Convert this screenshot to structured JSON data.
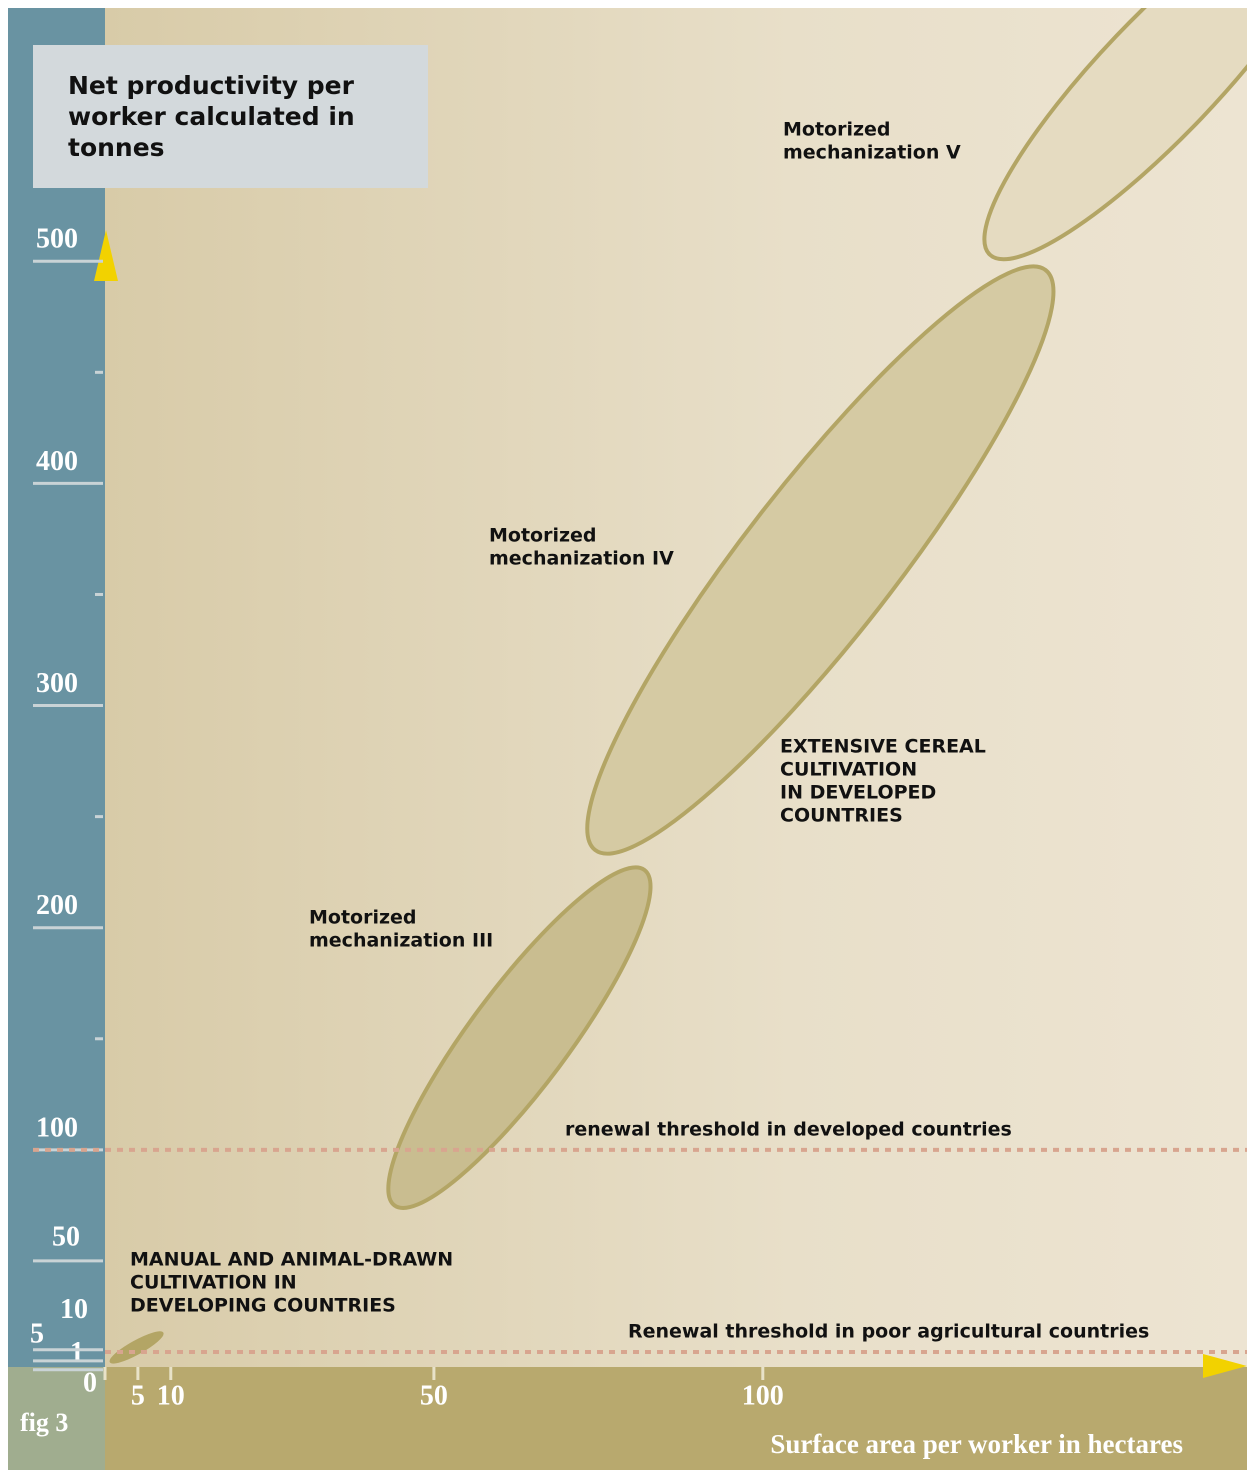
{
  "chart_data": {
    "type": "region",
    "title": "Net productivity per worker calculated in tonnes",
    "figure_label": "fig 3",
    "x_label": "Surface area per worker in hectares",
    "xlim": [
      0,
      173
    ],
    "ylim": [
      0,
      614
    ],
    "xticks": [
      0,
      5,
      10,
      50,
      100
    ],
    "yticks": [
      1,
      5,
      10,
      50,
      100,
      200,
      300,
      400,
      500
    ],
    "yminorticks": [
      150,
      250,
      350,
      450
    ],
    "regions": [
      {
        "name": "MANUAL AND ANIMAL-DRAWN CULTIVATION IN DEVELOPING COUNTRIES",
        "lines": [
          "MANUAL AND ANIMAL-DRAWN",
          "CULTIVATION IN",
          "DEVELOPING COUNTRIES"
        ],
        "from": [
          0.8,
          4.5
        ],
        "to": [
          8.8,
          17.6
        ],
        "width": 2,
        "color": "#b3a565"
      },
      {
        "name": "Motorized mechanization III",
        "lines": [
          "Motorized",
          "mechanization III"
        ],
        "from": [
          44,
          75
        ],
        "to": [
          82,
          226
        ],
        "width": 15,
        "color": "#c9bd90"
      },
      {
        "name": "Motorized mechanization IV",
        "lines": [
          "Motorized",
          "mechanization IV"
        ],
        "from": [
          74.5,
          235
        ],
        "to": [
          143,
          496
        ],
        "width": 23,
        "color": "#d5caa3"
      },
      {
        "name": "Motorized mechanization V",
        "lines": [
          "Motorized",
          "mechanization V"
        ],
        "from": [
          134.5,
          503
        ],
        "to": [
          186,
          663
        ],
        "width": 18,
        "color": "#e5dbc1"
      }
    ],
    "annotation": {
      "lines": [
        "EXTENSIVE CEREAL",
        "CULTIVATION",
        "IN DEVELOPED",
        "COUNTRIES"
      ]
    },
    "thresholds": [
      {
        "label": "renewal threshold in developed countries",
        "value": 100,
        "color": "#d8a58f"
      },
      {
        "label": "Renewal threshold in poor agricultural countries",
        "value": 9,
        "color": "#d8a58f"
      }
    ]
  }
}
